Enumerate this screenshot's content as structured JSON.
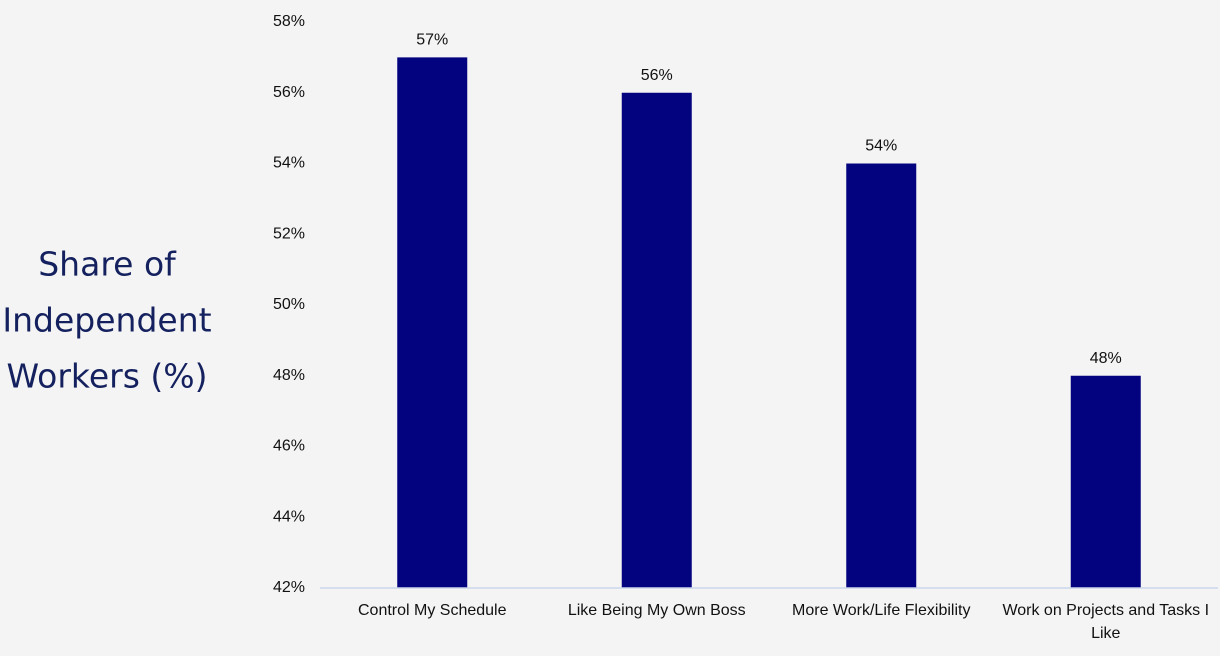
{
  "chart_data": {
    "type": "bar",
    "y_label": [
      "Share of",
      "Independent",
      "Workers (%)"
    ],
    "categories": [
      "Control My Schedule",
      "Like Being My Own Boss",
      "More Work/Life Flexibility",
      "Work on Projects and Tasks I Like"
    ],
    "values": [
      57,
      56,
      54,
      48
    ],
    "value_labels": [
      "57%",
      "56%",
      "54%",
      "48%"
    ],
    "color": "#03037f",
    "ylim": [
      42,
      58
    ],
    "yticks": [
      {
        "value": 42,
        "label": "42%"
      },
      {
        "value": 44,
        "label": "44%"
      },
      {
        "value": 46,
        "label": "46%"
      },
      {
        "value": 48,
        "label": "48%"
      },
      {
        "value": 50,
        "label": "50%"
      },
      {
        "value": 52,
        "label": "52%"
      },
      {
        "value": 54,
        "label": "54%"
      },
      {
        "value": 56,
        "label": "56%"
      },
      {
        "value": 58,
        "label": "58%"
      }
    ],
    "grid": false
  }
}
